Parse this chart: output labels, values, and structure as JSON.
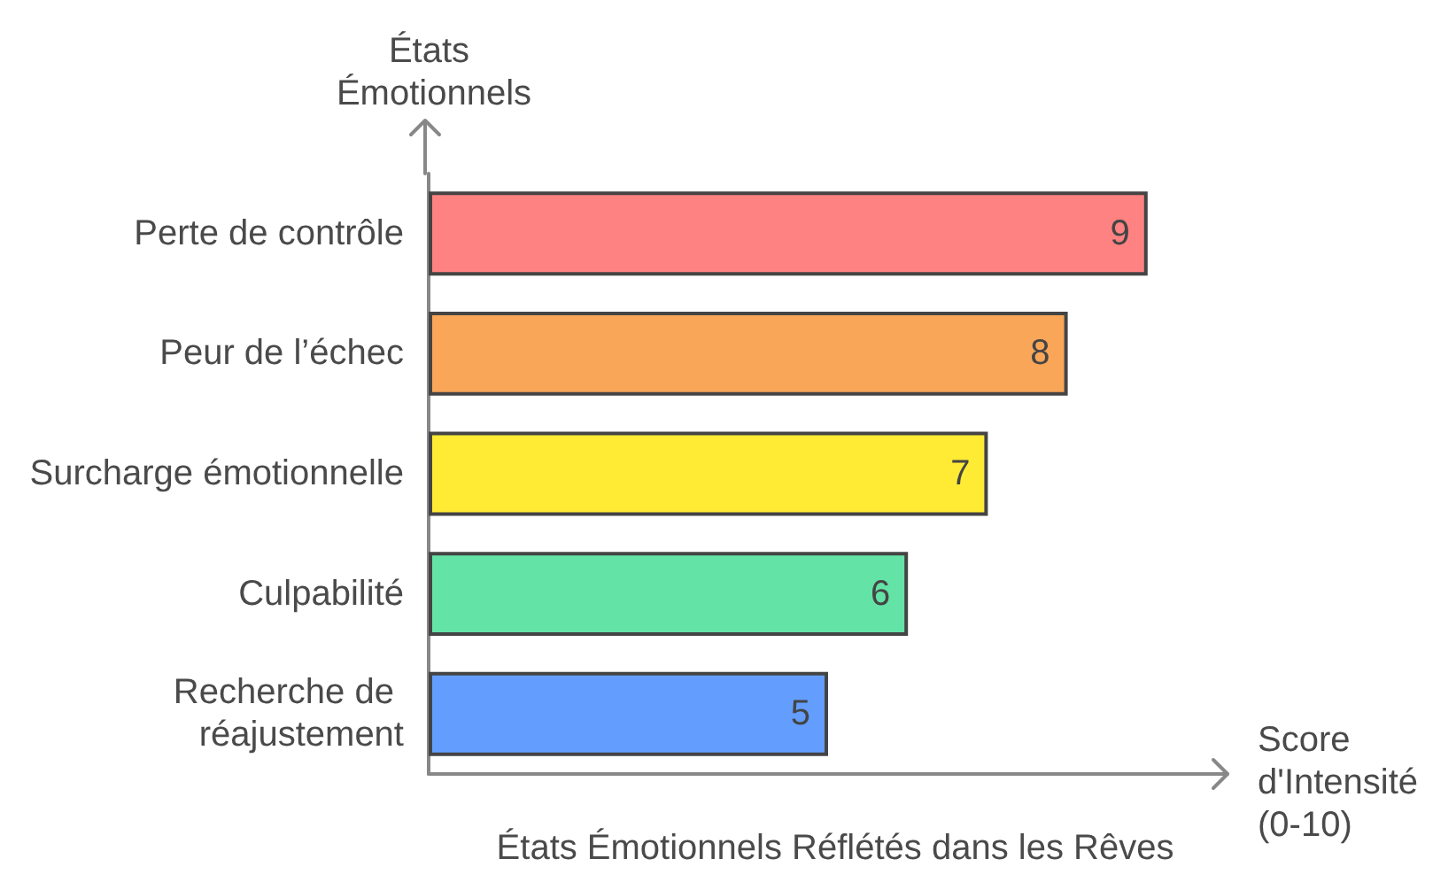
{
  "chart_data": {
    "type": "bar",
    "orientation": "horizontal",
    "title": "États Émotionnels Réflétés dans les Rêves",
    "xlabel": "Score d'Intensité (0-10)",
    "ylabel": "États Émotionnels",
    "categories": [
      "Perte de contrôle",
      "Peur de l’échec",
      "Surcharge émotionnelle",
      "Culpabilité",
      "Recherche de réajustement"
    ],
    "values": [
      9,
      8,
      7,
      6,
      5
    ],
    "colors": [
      "#ff8282",
      "#f9a658",
      "#ffeb33",
      "#63e3a5",
      "#639eff"
    ],
    "data_labels": true
  }
}
